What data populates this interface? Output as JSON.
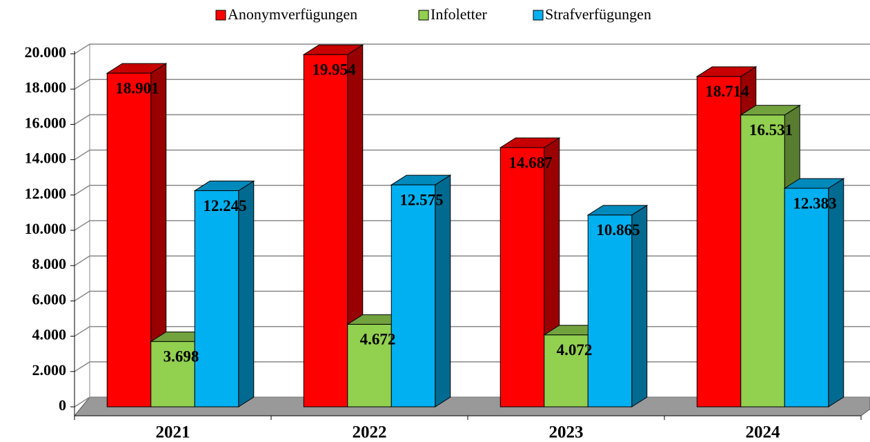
{
  "chart_data": {
    "type": "bar3d",
    "categories": [
      "2021",
      "2022",
      "2023",
      "2024"
    ],
    "series": [
      {
        "name": "Anonymverfügungen",
        "color": "#ff0000",
        "values": [
          18901,
          19954,
          14687,
          18714
        ],
        "value_labels": [
          "18.901",
          "19.954",
          "14.687",
          "18.714"
        ]
      },
      {
        "name": "Infoletter",
        "color": "#92d050",
        "values": [
          3698,
          4672,
          4072,
          16531
        ],
        "value_labels": [
          "3.698",
          "4.672",
          "4.072",
          "16.531"
        ]
      },
      {
        "name": "Strafverfügungen",
        "color": "#00b0f0",
        "values": [
          12245,
          12575,
          10865,
          12383
        ],
        "value_labels": [
          "12.245",
          "12.575",
          "10.865",
          "12.383"
        ]
      }
    ],
    "ylim": [
      0,
      20000
    ],
    "yticks": [
      0,
      {
        "value": 2000,
        "label": "2.000"
      },
      {
        "value": 4000,
        "label": "4.000"
      },
      {
        "value": 6000,
        "label": "6.000"
      },
      {
        "value": 8000,
        "label": "8.000"
      },
      {
        "value": 10000,
        "label": "10.000"
      },
      {
        "value": 12000,
        "label": "12.000"
      },
      {
        "value": 14000,
        "label": "14.000"
      },
      {
        "value": 16000,
        "label": "16.000"
      },
      {
        "value": 18000,
        "label": "18.000"
      },
      {
        "value": 20000,
        "label": "20.000"
      }
    ],
    "grid": true,
    "legend": "top"
  }
}
